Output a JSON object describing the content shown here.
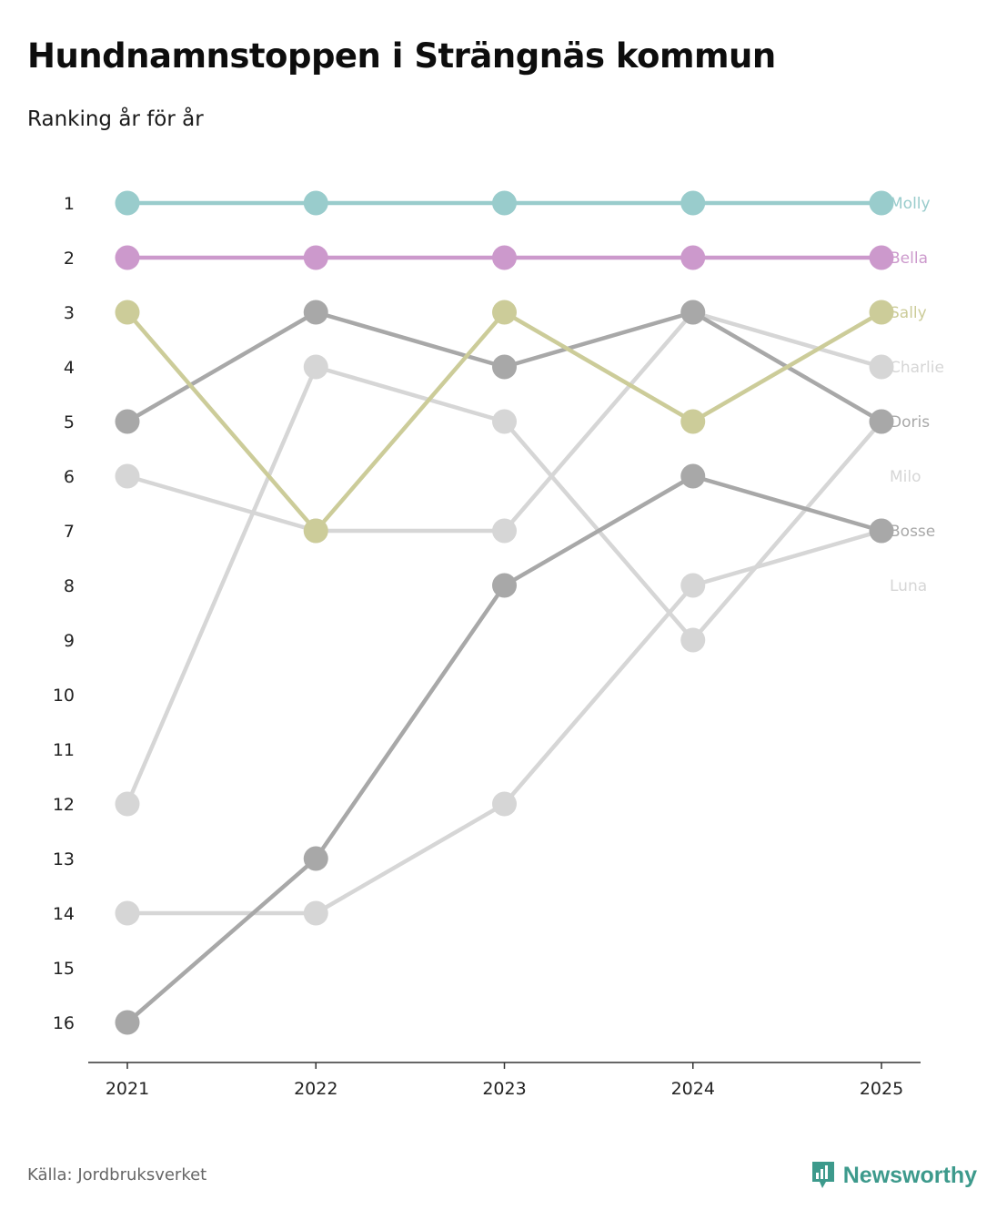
{
  "chart_data": {
    "type": "line",
    "title": "Hundnamnstoppen i Strängnäs kommun",
    "subtitle": "Ranking år för år",
    "xlabel": "",
    "ylabel": "",
    "x": [
      "2021",
      "2022",
      "2023",
      "2024",
      "2025"
    ],
    "ylim": [
      1,
      16
    ],
    "y_inverted": true,
    "y_ticks": [
      "1",
      "2",
      "3",
      "4",
      "5",
      "6",
      "7",
      "8",
      "9",
      "10",
      "11",
      "12",
      "13",
      "14",
      "15",
      "16"
    ],
    "series": [
      {
        "name": "Luna",
        "color": "#d6d6d6",
        "values": [
          14,
          14,
          12,
          8,
          7
        ]
      },
      {
        "name": "Milo",
        "color": "#d6d6d6",
        "values": [
          12,
          4,
          5,
          9,
          5
        ]
      },
      {
        "name": "Charlie",
        "color": "#d6d6d6",
        "values": [
          6,
          7,
          7,
          3,
          4
        ]
      },
      {
        "name": "Bosse",
        "color": "#a8a8a8",
        "values": [
          16,
          13,
          8,
          6,
          7
        ]
      },
      {
        "name": "Doris",
        "color": "#a8a8a8",
        "values": [
          5,
          3,
          4,
          3,
          5
        ]
      },
      {
        "name": "Sally",
        "color": "#cccc99",
        "values": [
          3,
          7,
          3,
          5,
          3
        ]
      },
      {
        "name": "Bella",
        "color": "#cc99cc",
        "values": [
          2,
          2,
          2,
          2,
          2
        ]
      },
      {
        "name": "Molly",
        "color": "#99cccc",
        "values": [
          1,
          1,
          1,
          1,
          1
        ]
      }
    ],
    "end_labels": [
      {
        "name": "Molly",
        "rank": 1,
        "color": "#99cccc"
      },
      {
        "name": "Bella",
        "rank": 2,
        "color": "#cc99cc"
      },
      {
        "name": "Sally",
        "rank": 3,
        "color": "#cccc99"
      },
      {
        "name": "Charlie",
        "rank": 4,
        "color": "#d6d6d6"
      },
      {
        "name": "Doris",
        "rank": 5,
        "color": "#a8a8a8"
      },
      {
        "name": "Milo",
        "rank": 6,
        "color": "#d6d6d6"
      },
      {
        "name": "Bosse",
        "rank": 7,
        "color": "#a8a8a8"
      },
      {
        "name": "Luna",
        "rank": 8,
        "color": "#d6d6d6"
      }
    ],
    "legend": "right"
  },
  "footer": {
    "source": "Källa: Jordbruksverket",
    "brand": "Newsworthy",
    "brand_color": "#3d9a8c",
    "brand_icon": "newsworthy-logo-icon"
  }
}
